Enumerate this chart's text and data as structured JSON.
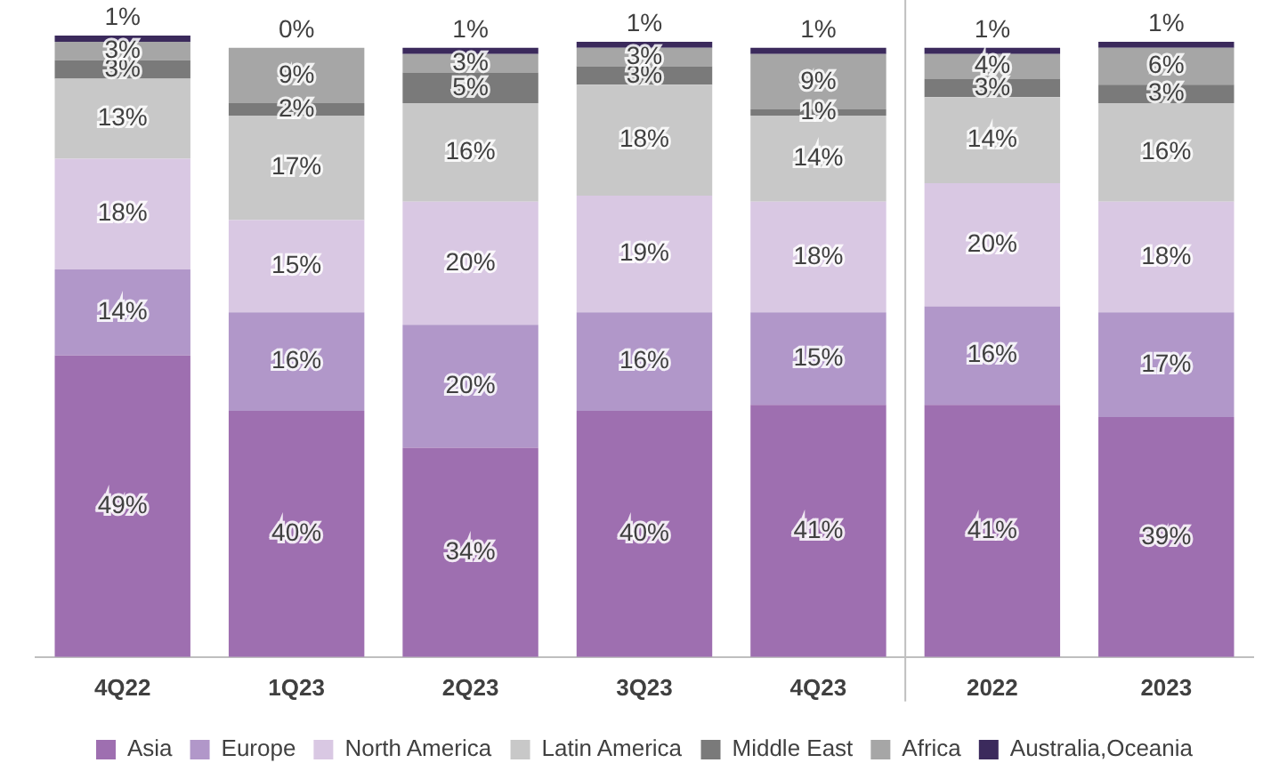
{
  "chart_data": {
    "type": "bar",
    "stacked": true,
    "ylim": [
      0,
      101
    ],
    "legend": "bottom",
    "grid": false,
    "categories": [
      "4Q22",
      "1Q23",
      "2Q23",
      "3Q23",
      "4Q23",
      "2022",
      "2023"
    ],
    "series": [
      {
        "name": "Asia",
        "color": "#9e6fb0",
        "values": [
          49,
          40,
          34,
          40,
          41,
          41,
          39
        ],
        "value_labels": [
          "49%",
          "40%",
          "34%",
          "40%",
          "41%",
          "41%",
          "39%"
        ]
      },
      {
        "name": "Europe",
        "color": "#b197c9",
        "values": [
          14,
          16,
          20,
          16,
          15,
          16,
          17
        ],
        "value_labels": [
          "14%",
          "16%",
          "20%",
          "16%",
          "15%",
          "16%",
          "17%"
        ]
      },
      {
        "name": "North America",
        "color": "#d9c8e3",
        "values": [
          18,
          15,
          20,
          19,
          18,
          20,
          18
        ],
        "value_labels": [
          "18%",
          "15%",
          "20%",
          "19%",
          "18%",
          "20%",
          "18%"
        ]
      },
      {
        "name": "Latin America",
        "color": "#c8c8c8",
        "values": [
          13,
          17,
          16,
          18,
          14,
          14,
          16
        ],
        "value_labels": [
          "13%",
          "17%",
          "16%",
          "18%",
          "14%",
          "14%",
          "16%"
        ]
      },
      {
        "name": "Middle East",
        "color": "#7a7a7a",
        "values": [
          3,
          2,
          5,
          3,
          1,
          3,
          3
        ],
        "value_labels": [
          "3%",
          "2%",
          "5%",
          "3%",
          "1%",
          "3%",
          "3%"
        ]
      },
      {
        "name": "Africa",
        "color": "#a6a6a6",
        "values": [
          3,
          9,
          3,
          3,
          9,
          4,
          6
        ],
        "value_labels": [
          "3%",
          "9%",
          "3%",
          "3%",
          "9%",
          "4%",
          "6%"
        ]
      },
      {
        "name": "Australia,Oceania",
        "color": "#3b2a5c",
        "values": [
          1,
          0,
          1,
          1,
          1,
          1,
          1
        ],
        "value_labels": [
          "1%",
          "0%",
          "1%",
          "1%",
          "1%",
          "1%",
          "1%"
        ]
      }
    ]
  }
}
